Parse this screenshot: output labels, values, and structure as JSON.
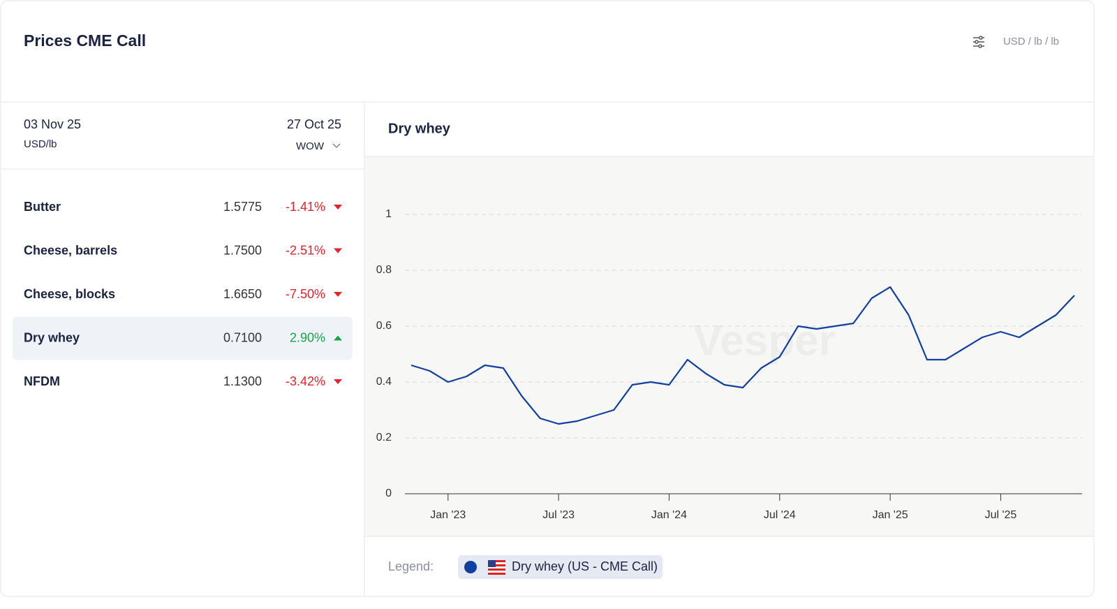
{
  "header": {
    "title": "Prices CME Call",
    "unit": "USD / lb / lb"
  },
  "table": {
    "date": "03 Nov 25",
    "unit": "USD/lb",
    "compare_date": "27 Oct 25",
    "compare_mode": "WOW",
    "rows": [
      [
        "Butter",
        "1.5775",
        "-1.41%"
      ],
      [
        "Cheese, barrels",
        "1.7500",
        "-2.51%"
      ],
      [
        "Cheese, blocks",
        "1.6650",
        "-7.50%"
      ],
      [
        "Dry whey",
        "0.7100",
        "2.90%"
      ],
      [
        "NFDM",
        "1.1300",
        "-3.42%"
      ]
    ]
  },
  "chart_data": {
    "type": "line",
    "title": "Dry whey",
    "watermark": "Vesper",
    "legend_label": "Legend:",
    "x": [
      "2022-11",
      "2022-12",
      "2023-01",
      "2023-02",
      "2023-03",
      "2023-04",
      "2023-05",
      "2023-06",
      "2023-07",
      "2023-08",
      "2023-09",
      "2023-10",
      "2023-11",
      "2023-12",
      "2024-01",
      "2024-02",
      "2024-03",
      "2024-04",
      "2024-05",
      "2024-06",
      "2024-07",
      "2024-08",
      "2024-09",
      "2024-10",
      "2024-11",
      "2024-12",
      "2025-01",
      "2025-02",
      "2025-03",
      "2025-04",
      "2025-05",
      "2025-06",
      "2025-07",
      "2025-08",
      "2025-09",
      "2025-10",
      "2025-11"
    ],
    "series": [
      {
        "name": "Dry whey (US - CME Call)",
        "color": "#1240a0",
        "values": [
          0.46,
          0.44,
          0.4,
          0.42,
          0.46,
          0.45,
          0.35,
          0.27,
          0.25,
          0.26,
          0.28,
          0.3,
          0.39,
          0.4,
          0.39,
          0.48,
          0.43,
          0.39,
          0.38,
          0.45,
          0.49,
          0.6,
          0.59,
          0.6,
          0.61,
          0.7,
          0.74,
          0.64,
          0.48,
          0.48,
          0.52,
          0.56,
          0.58,
          0.56,
          0.6,
          0.64,
          0.71
        ]
      }
    ],
    "xlim": [
      "2022-11",
      "2025-11"
    ],
    "xticks": [
      {
        "value": "2023-01",
        "label": "Jan '23"
      },
      {
        "value": "2023-07",
        "label": "Jul '23"
      },
      {
        "value": "2024-01",
        "label": "Jan '24"
      },
      {
        "value": "2024-07",
        "label": "Jul '24"
      },
      {
        "value": "2025-01",
        "label": "Jan '25"
      },
      {
        "value": "2025-07",
        "label": "Jul '25"
      }
    ],
    "ylim": [
      0,
      1
    ],
    "yticks": [
      0,
      0.2,
      0.4,
      0.6,
      0.8,
      1
    ],
    "grid": true
  }
}
